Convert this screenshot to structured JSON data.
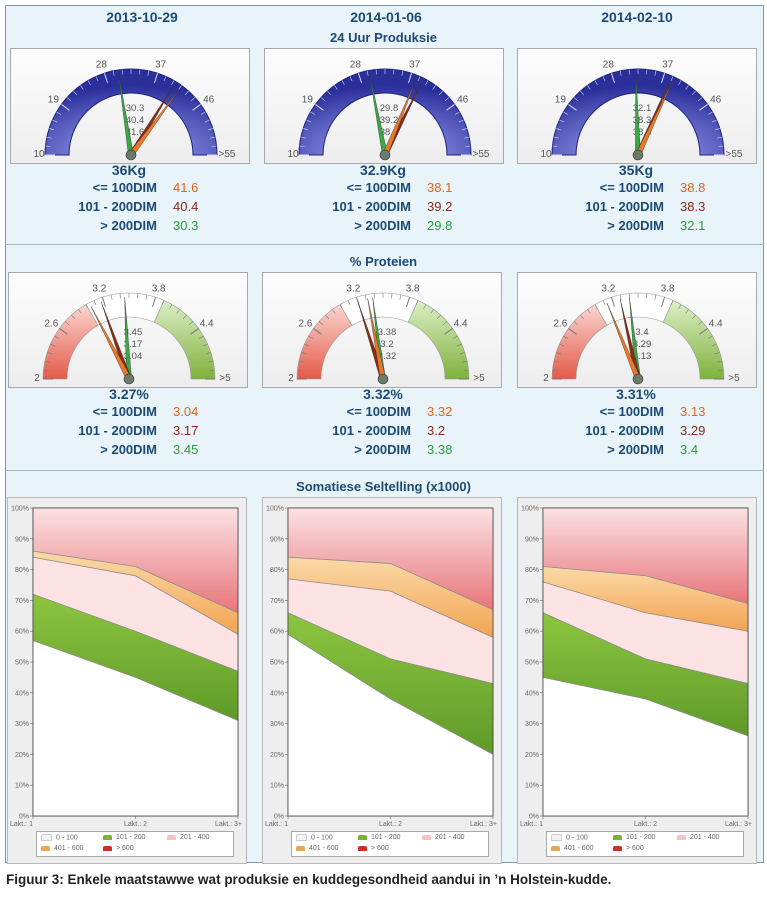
{
  "columns": [
    {
      "date": "2013-10-29",
      "production": {
        "main": "36Kg",
        "readings": [
          "30.3",
          "40.4",
          "41.6"
        ],
        "rows": [
          {
            "label": "<= 100DIM",
            "value": "41.6"
          },
          {
            "label": "101 - 200DIM",
            "value": "40.4"
          },
          {
            "label": "> 200DIM",
            "value": "30.3"
          }
        ]
      },
      "protein": {
        "main": "3.27%",
        "readings": [
          "3.45",
          "3.17",
          "3.04"
        ],
        "rows": [
          {
            "label": "<= 100DIM",
            "value": "3.04"
          },
          {
            "label": "101 - 200DIM",
            "value": "3.17"
          },
          {
            "label": "> 200DIM",
            "value": "3.45"
          }
        ]
      },
      "scc": {
        "x": [
          "Lakt.: 1",
          "Lakt.: 2",
          "Lakt.: 3+"
        ],
        "bounds": [
          [
            57,
            45,
            31
          ],
          [
            72,
            60,
            47
          ],
          [
            84,
            78,
            59
          ],
          [
            86,
            81,
            66
          ]
        ]
      }
    },
    {
      "date": "2014-01-06",
      "production": {
        "main": "32.9Kg",
        "readings": [
          "29.8",
          "39.2",
          "38.1"
        ],
        "rows": [
          {
            "label": "<= 100DIM",
            "value": "38.1"
          },
          {
            "label": "101 - 200DIM",
            "value": "39.2"
          },
          {
            "label": "> 200DIM",
            "value": "29.8"
          }
        ]
      },
      "protein": {
        "main": "3.32%",
        "readings": [
          "3.38",
          "3.2",
          "3.32"
        ],
        "rows": [
          {
            "label": "<= 100DIM",
            "value": "3.32"
          },
          {
            "label": "101 - 200DIM",
            "value": "3.2"
          },
          {
            "label": "> 200DIM",
            "value": "3.38"
          }
        ]
      },
      "scc": {
        "x": [
          "Lakt.: 1",
          "Lakt.: 2",
          "Lakt.: 3+"
        ],
        "bounds": [
          [
            59,
            38,
            20
          ],
          [
            66,
            51,
            43
          ],
          [
            77,
            73,
            58
          ],
          [
            84,
            82,
            67
          ]
        ]
      }
    },
    {
      "date": "2014-02-10",
      "production": {
        "main": "35Kg",
        "readings": [
          "32.1",
          "38.3",
          "38.8"
        ],
        "rows": [
          {
            "label": "<= 100DIM",
            "value": "38.8"
          },
          {
            "label": "101 - 200DIM",
            "value": "38.3"
          },
          {
            "label": "> 200DIM",
            "value": "32.1"
          }
        ]
      },
      "protein": {
        "main": "3.31%",
        "readings": [
          "3.4",
          "3.29",
          "3.13"
        ],
        "rows": [
          {
            "label": "<= 100DIM",
            "value": "3.13"
          },
          {
            "label": "101 - 200DIM",
            "value": "3.29"
          },
          {
            "label": "> 200DIM",
            "value": "3.4"
          }
        ]
      },
      "scc": {
        "x": [
          "Lakt.: 1",
          "Lakt.: 2",
          "Lakt.: 3+"
        ],
        "bounds": [
          [
            45,
            38,
            26
          ],
          [
            66,
            51,
            43
          ],
          [
            76,
            66,
            60
          ],
          [
            81,
            78,
            69
          ]
        ]
      }
    }
  ],
  "sections": {
    "production": "24 Uur Produksie",
    "protein": "% Proteien",
    "scc": "Somatiese Seltelling (x1000)"
  },
  "production_gauge": {
    "min": 10,
    "max": 55,
    "ticks": [
      "10",
      "19",
      "28",
      "37",
      "46",
      ">55"
    ]
  },
  "protein_gauge": {
    "min": 2,
    "max": 5,
    "ticks": [
      "2",
      "2.6",
      "3.2",
      "3.8",
      "4.4",
      ">5"
    ],
    "bands": [
      {
        "from": 2,
        "to": 3.0,
        "color": "#e35a48"
      },
      {
        "from": 3.0,
        "to": 3.9,
        "color": "#ffffff"
      },
      {
        "from": 3.9,
        "to": 5,
        "color": "#7fb13c"
      }
    ]
  },
  "needle_colors": [
    "#3aa845",
    "#8c2a14",
    "#e8782a"
  ],
  "value_colors": [
    "#e0641e",
    "#8c2a14",
    "#2e9a3c"
  ],
  "scc_y_ticks": [
    "0%",
    "10%",
    "20%",
    "30%",
    "40%",
    "50%",
    "60%",
    "70%",
    "80%",
    "90%",
    "100%"
  ],
  "legend": [
    {
      "label": "0 - 100",
      "color": "#f3f3f3"
    },
    {
      "label": "101 - 200",
      "color": "#7bb331"
    },
    {
      "label": "201 - 400",
      "color": "#f6c3c3"
    },
    {
      "label": "401 - 600",
      "color": "#f0a64e"
    },
    {
      "label": "> 600",
      "color": "#c8312a"
    }
  ],
  "caption": "Figuur 3: Enkele maatstawwe wat produksie en kuddegesondheid aandui in ’n Holstein-kudde."
}
